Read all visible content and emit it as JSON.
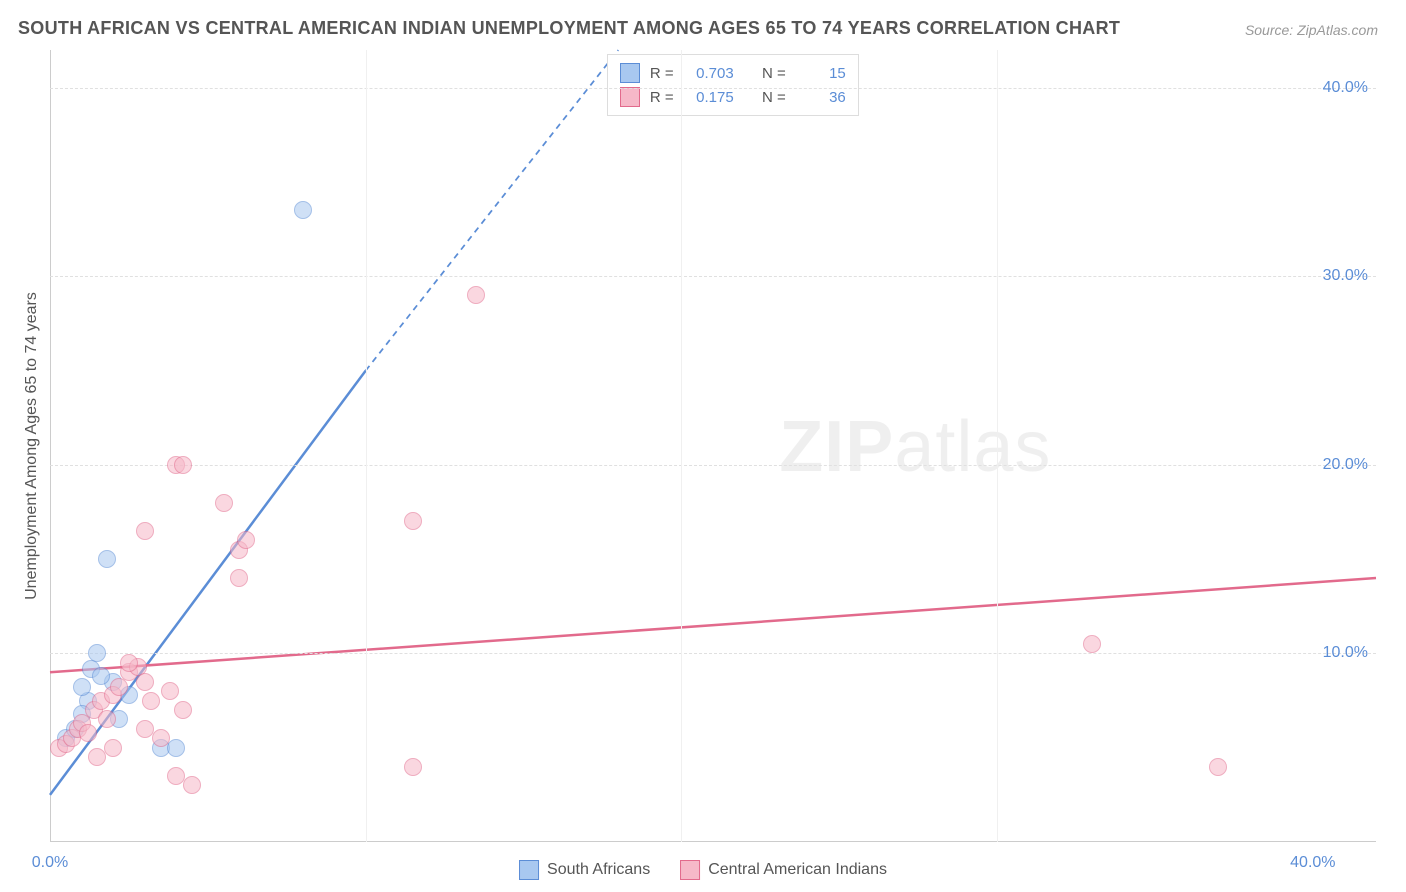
{
  "title": "SOUTH AFRICAN VS CENTRAL AMERICAN INDIAN UNEMPLOYMENT AMONG AGES 65 TO 74 YEARS CORRELATION CHART",
  "source": "Source: ZipAtlas.com",
  "watermark_zip": "ZIP",
  "watermark_atlas": "atlas",
  "chart": {
    "type": "scatter",
    "background_color": "#ffffff",
    "grid_color": "#e0e0e0",
    "axis_color": "#cccccc",
    "ylabel": "Unemployment Among Ages 65 to 74 years",
    "ylabel_color": "#555555",
    "xlim": [
      0,
      42
    ],
    "ylim": [
      0,
      42
    ],
    "xticks": [
      {
        "pos": 0,
        "label": "0.0%",
        "color": "#5b8dd6"
      },
      {
        "pos": 40,
        "label": "40.0%",
        "color": "#5b8dd6"
      }
    ],
    "yticks": [
      {
        "pos": 10,
        "label": "10.0%",
        "color": "#5b8dd6"
      },
      {
        "pos": 20,
        "label": "20.0%",
        "color": "#5b8dd6"
      },
      {
        "pos": 30,
        "label": "30.0%",
        "color": "#5b8dd6"
      },
      {
        "pos": 40,
        "label": "40.0%",
        "color": "#5b8dd6"
      }
    ],
    "grid_h": [
      10,
      20,
      30,
      40
    ],
    "grid_v": [
      10,
      20,
      30
    ],
    "point_radius": 9,
    "point_opacity": 0.55,
    "series": [
      {
        "name": "South Africans",
        "legend_label": "South Africans",
        "fill": "#a8c8f0",
        "stroke": "#5b8dd6",
        "R": "0.703",
        "N": "15",
        "stat_color": "#5b8dd6",
        "trend": {
          "x1": 0,
          "y1": 2.5,
          "x2_solid": 10,
          "y2_solid": 25,
          "x2_dash": 18,
          "y2_dash": 42,
          "width": 2.5
        },
        "points": [
          [
            0.5,
            5.5
          ],
          [
            0.8,
            6
          ],
          [
            1.2,
            7.5
          ],
          [
            1.0,
            8.2
          ],
          [
            1.5,
            10
          ],
          [
            1.3,
            9.2
          ],
          [
            2.0,
            8.5
          ],
          [
            2.5,
            7.8
          ],
          [
            3.5,
            5
          ],
          [
            4.0,
            5
          ],
          [
            1.8,
            15
          ],
          [
            8.0,
            33.5
          ],
          [
            2.2,
            6.5
          ],
          [
            1.0,
            6.8
          ],
          [
            1.6,
            8.8
          ]
        ]
      },
      {
        "name": "Central American Indians",
        "legend_label": "Central American Indians",
        "fill": "#f6b8c8",
        "stroke": "#e26a8c",
        "R": "0.175",
        "N": "36",
        "stat_color": "#5b8dd6",
        "trend": {
          "x1": 0,
          "y1": 9,
          "x2_solid": 42,
          "y2_solid": 14,
          "width": 2.5
        },
        "points": [
          [
            0.3,
            5
          ],
          [
            0.5,
            5.2
          ],
          [
            0.7,
            5.5
          ],
          [
            0.9,
            6
          ],
          [
            1.0,
            6.3
          ],
          [
            1.2,
            5.8
          ],
          [
            1.4,
            7
          ],
          [
            1.6,
            7.5
          ],
          [
            1.8,
            6.5
          ],
          [
            2.0,
            7.8
          ],
          [
            2.2,
            8.2
          ],
          [
            2.5,
            9
          ],
          [
            2.8,
            9.3
          ],
          [
            3.0,
            8.5
          ],
          [
            3.2,
            7.5
          ],
          [
            3.5,
            5.5
          ],
          [
            3.8,
            8
          ],
          [
            4.0,
            3.5
          ],
          [
            4.2,
            7
          ],
          [
            2.5,
            9.5
          ],
          [
            3.0,
            16.5
          ],
          [
            4.0,
            20
          ],
          [
            4.2,
            20
          ],
          [
            5.5,
            18
          ],
          [
            6.0,
            15.5
          ],
          [
            6.2,
            16
          ],
          [
            6.0,
            14
          ],
          [
            11.5,
            17
          ],
          [
            13.5,
            29
          ],
          [
            11.5,
            4
          ],
          [
            33.0,
            10.5
          ],
          [
            37.0,
            4
          ],
          [
            2.0,
            5
          ],
          [
            1.5,
            4.5
          ],
          [
            4.5,
            3
          ],
          [
            3.0,
            6
          ]
        ]
      }
    ],
    "legend_stats": {
      "R_label": "R =",
      "N_label": "N ="
    }
  }
}
